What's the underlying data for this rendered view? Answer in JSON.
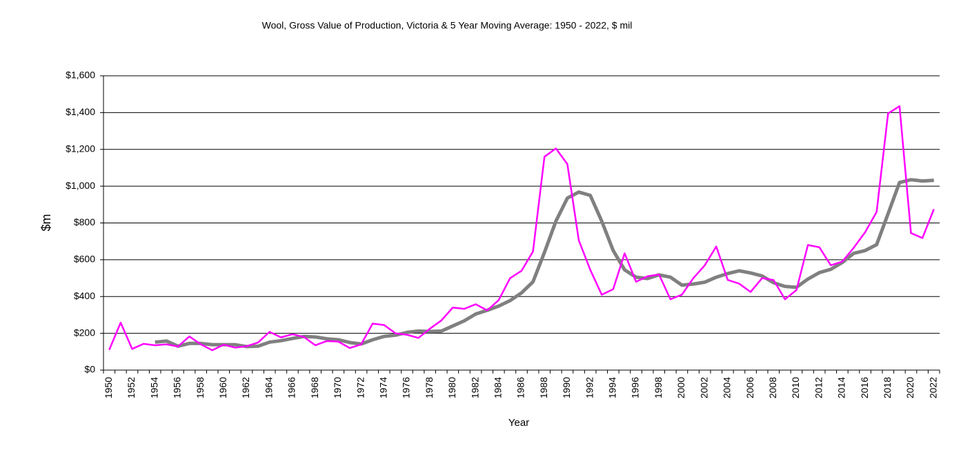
{
  "chart_data": {
    "type": "line",
    "title": "Wool, Gross Value of Production, Victoria & 5 Year Moving Average: 1950 - 2022, $ mil",
    "x_label": "Year",
    "y_label": "$m",
    "categories": [
      "1950",
      null,
      "1952",
      null,
      "1954",
      null,
      "1956",
      null,
      "1958",
      null,
      "1960",
      null,
      "1962",
      null,
      "1964",
      null,
      "1966",
      null,
      "1968",
      null,
      "1970",
      null,
      "1972",
      null,
      "1974",
      null,
      "1976",
      null,
      "1978",
      null,
      "1980",
      null,
      "1982",
      null,
      "1984",
      null,
      "1986",
      null,
      "1988",
      null,
      "1990",
      null,
      "1992",
      null,
      "1994",
      null,
      "1996",
      null,
      "1998",
      null,
      "2000",
      null,
      "2002",
      null,
      "2004",
      null,
      "2006",
      null,
      "2008",
      null,
      "2010",
      null,
      "2012",
      null,
      "2014",
      null,
      "2016",
      null,
      "2018",
      null,
      "2020",
      null,
      "2022"
    ],
    "series": [
      {
        "color": "#ff00ff",
        "width": 2.5,
        "values": [
          110,
          258,
          115,
          143,
          135,
          140,
          128,
          183,
          140,
          108,
          138,
          122,
          130,
          150,
          208,
          178,
          195,
          180,
          135,
          158,
          155,
          120,
          140,
          253,
          245,
          200,
          192,
          175,
          225,
          270,
          340,
          333,
          358,
          325,
          380,
          500,
          540,
          645,
          1160,
          1205,
          1120,
          705,
          545,
          410,
          440,
          635,
          480,
          510,
          520,
          385,
          410,
          500,
          570,
          672,
          490,
          470,
          425,
          500,
          490,
          385,
          435,
          680,
          668,
          570,
          590,
          665,
          750,
          860,
          1395,
          1435,
          745,
          718,
          875
        ]
      },
      {
        "color": "#808080",
        "width": 5,
        "values": [
          null,
          null,
          null,
          null,
          152,
          158,
          130,
          145,
          145,
          138,
          138,
          138,
          128,
          130,
          152,
          160,
          172,
          183,
          180,
          170,
          165,
          150,
          142,
          165,
          183,
          190,
          205,
          212,
          210,
          212,
          240,
          268,
          305,
          325,
          348,
          378,
          420,
          480,
          640,
          810,
          935,
          968,
          950,
          810,
          650,
          545,
          505,
          498,
          518,
          505,
          462,
          468,
          478,
          505,
          525,
          540,
          528,
          512,
          475,
          455,
          450,
          495,
          530,
          548,
          585,
          635,
          650,
          682,
          850,
          1020,
          1035,
          1028,
          1032
        ]
      }
    ],
    "ylim": [
      0,
      1600
    ],
    "yticks": [
      {
        "value": 0,
        "label": "$0"
      },
      {
        "value": 200,
        "label": "$200"
      },
      {
        "value": 400,
        "label": "$400"
      },
      {
        "value": 600,
        "label": "$600"
      },
      {
        "value": 800,
        "label": "$800"
      },
      {
        "value": 1000,
        "label": "$1,000"
      },
      {
        "value": 1200,
        "label": "$1,200"
      },
      {
        "value": 1400,
        "label": "$1,400"
      },
      {
        "value": 1600,
        "label": "$1,600"
      }
    ],
    "grid": true
  }
}
